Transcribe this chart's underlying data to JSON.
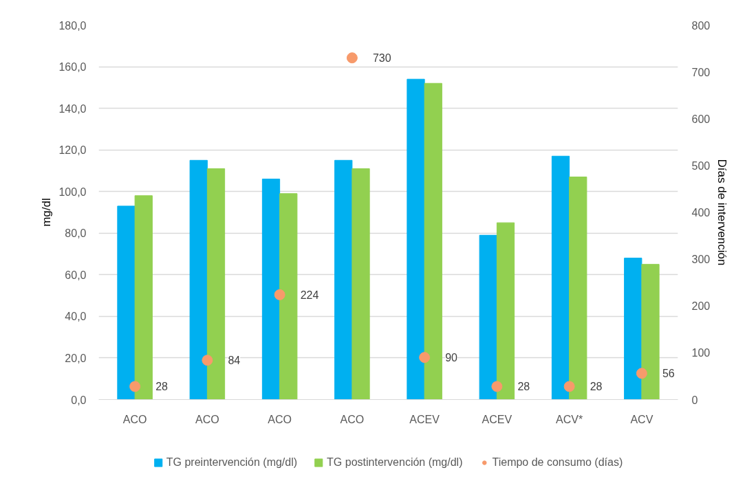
{
  "chart_data": {
    "type": "bar",
    "ylabel": "mg/dl",
    "y2label": "Días de intervención",
    "categories": [
      "ACO",
      "ACO",
      "ACO",
      "ACO",
      "ACEV",
      "ACEV",
      "ACV*",
      "ACV"
    ],
    "series": [
      {
        "name": "TG preintervención (mg/dl)",
        "color": "#00b0f0",
        "values": [
          93,
          115,
          106,
          115,
          154,
          79,
          117,
          68
        ]
      },
      {
        "name": "TG postintervención (mg/dl)",
        "color": "#92d050",
        "values": [
          98,
          111,
          99,
          111,
          152,
          85,
          107,
          65
        ]
      },
      {
        "name": "Tiempo de consumo (días)",
        "type": "scatter",
        "axis": "y2",
        "color": "#f79a6b",
        "marker": "circle",
        "values": [
          28,
          84,
          224,
          730,
          90,
          28,
          28,
          56
        ],
        "value_labels": [
          "28",
          "84",
          "224",
          "730",
          "90",
          "28",
          "28",
          "56"
        ]
      }
    ],
    "ylim": [
      0,
      180
    ],
    "yticks": [
      {
        "value": 0,
        "label": "0,0"
      },
      {
        "value": 20,
        "label": "20,0"
      },
      {
        "value": 40,
        "label": "40,0"
      },
      {
        "value": 60,
        "label": "60,0"
      },
      {
        "value": 80,
        "label": "80,0"
      },
      {
        "value": 100,
        "label": "100,0"
      },
      {
        "value": 120,
        "label": "120,0"
      },
      {
        "value": 140,
        "label": "140,0"
      },
      {
        "value": 160,
        "label": "160,0"
      },
      {
        "value": 180,
        "label": "180,0"
      }
    ],
    "y2lim": [
      0,
      800
    ],
    "y2ticks": [
      0,
      100,
      200,
      300,
      400,
      500,
      600,
      700,
      800
    ],
    "grid": "y",
    "legend": "bottom"
  }
}
